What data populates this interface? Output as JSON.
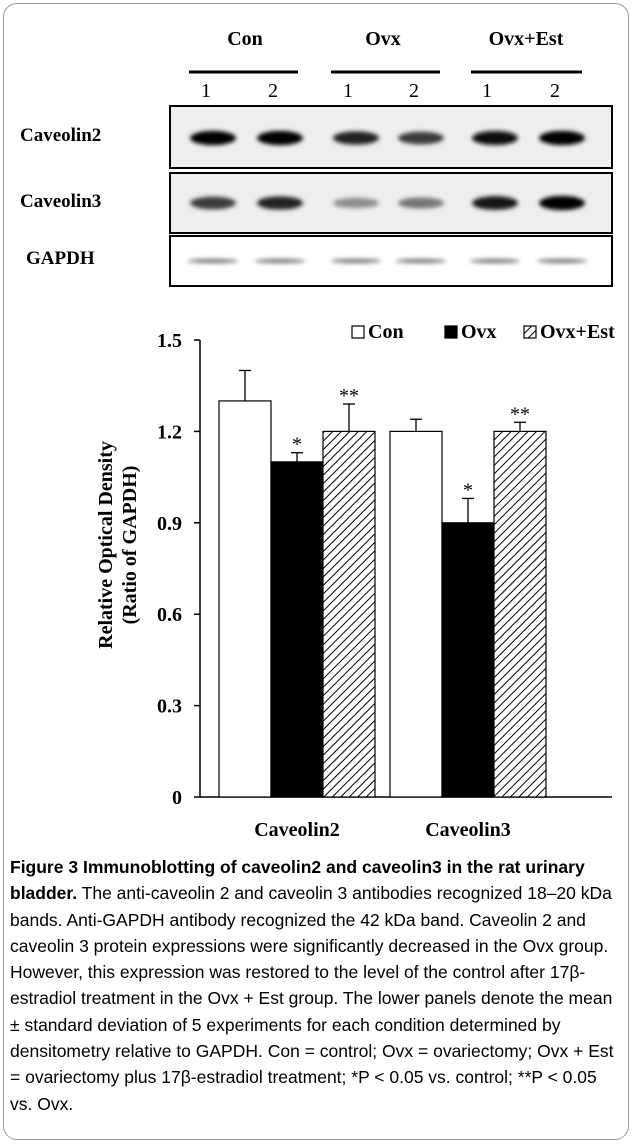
{
  "blot": {
    "groups": [
      {
        "label": "Con",
        "lanes": [
          "1",
          "2"
        ]
      },
      {
        "label": "Ovx",
        "lanes": [
          "1",
          "2"
        ]
      },
      {
        "label": "Ovx+Est",
        "lanes": [
          "1",
          "2"
        ]
      }
    ],
    "rows": [
      {
        "label": "Caveolin2",
        "band_intensity": [
          1.0,
          1.0,
          0.85,
          0.75,
          0.95,
          1.0
        ]
      },
      {
        "label": "Caveolin3",
        "band_intensity": [
          0.75,
          0.85,
          0.4,
          0.5,
          0.9,
          1.0
        ]
      },
      {
        "label": "GAPDH",
        "band_intensity": [
          0.5,
          0.5,
          0.5,
          0.5,
          0.5,
          0.5
        ]
      }
    ]
  },
  "chart_data": {
    "type": "bar",
    "ylabel_line1": "Relative Optical Density",
    "ylabel_line2": "(Ratio of GAPDH)",
    "ylim": [
      0,
      1.5
    ],
    "yticks": [
      "0",
      "0.3",
      "0.6",
      "0.9",
      "1.2",
      "1.5"
    ],
    "categories": [
      "Caveolin2",
      "Caveolin3"
    ],
    "legend_position": "top-right",
    "series": [
      {
        "name": "Con",
        "fill": "#ffffff",
        "values": [
          1.3,
          1.2
        ],
        "errors": [
          0.1,
          0.04
        ],
        "marks": [
          "",
          ""
        ]
      },
      {
        "name": "Ovx",
        "fill": "#000000",
        "values": [
          1.1,
          0.9
        ],
        "errors": [
          0.03,
          0.08
        ],
        "marks": [
          "*",
          "*"
        ]
      },
      {
        "name": "Ovx+Est",
        "fill": "hatch",
        "values": [
          1.2,
          1.2
        ],
        "errors": [
          0.09,
          0.03
        ],
        "marks": [
          "**",
          "**"
        ]
      }
    ]
  },
  "caption": {
    "label": "Figure 3",
    "title": "Immunoblotting of caveolin2 and caveolin3 in the rat urinary bladder.",
    "body": "The anti-caveolin 2 and caveolin 3 antibodies recognized 18–20 kDa bands. Anti-GAPDH antibody recognized the 42 kDa band. Caveolin 2 and caveolin 3 protein expressions were significantly decreased in the Ovx group. However, this expression was restored to the level of the control after 17β-estradiol treatment in the Ovx + Est group. The lower panels denote the mean ± standard deviation of 5 experiments for each condition determined by densitometry relative to GAPDH. Con = control; Ovx = ovariectomy; Ovx + Est = ovariectomy plus 17β-estradiol treatment; *P < 0.05 vs. control; **P < 0.05 vs. Ovx."
  }
}
